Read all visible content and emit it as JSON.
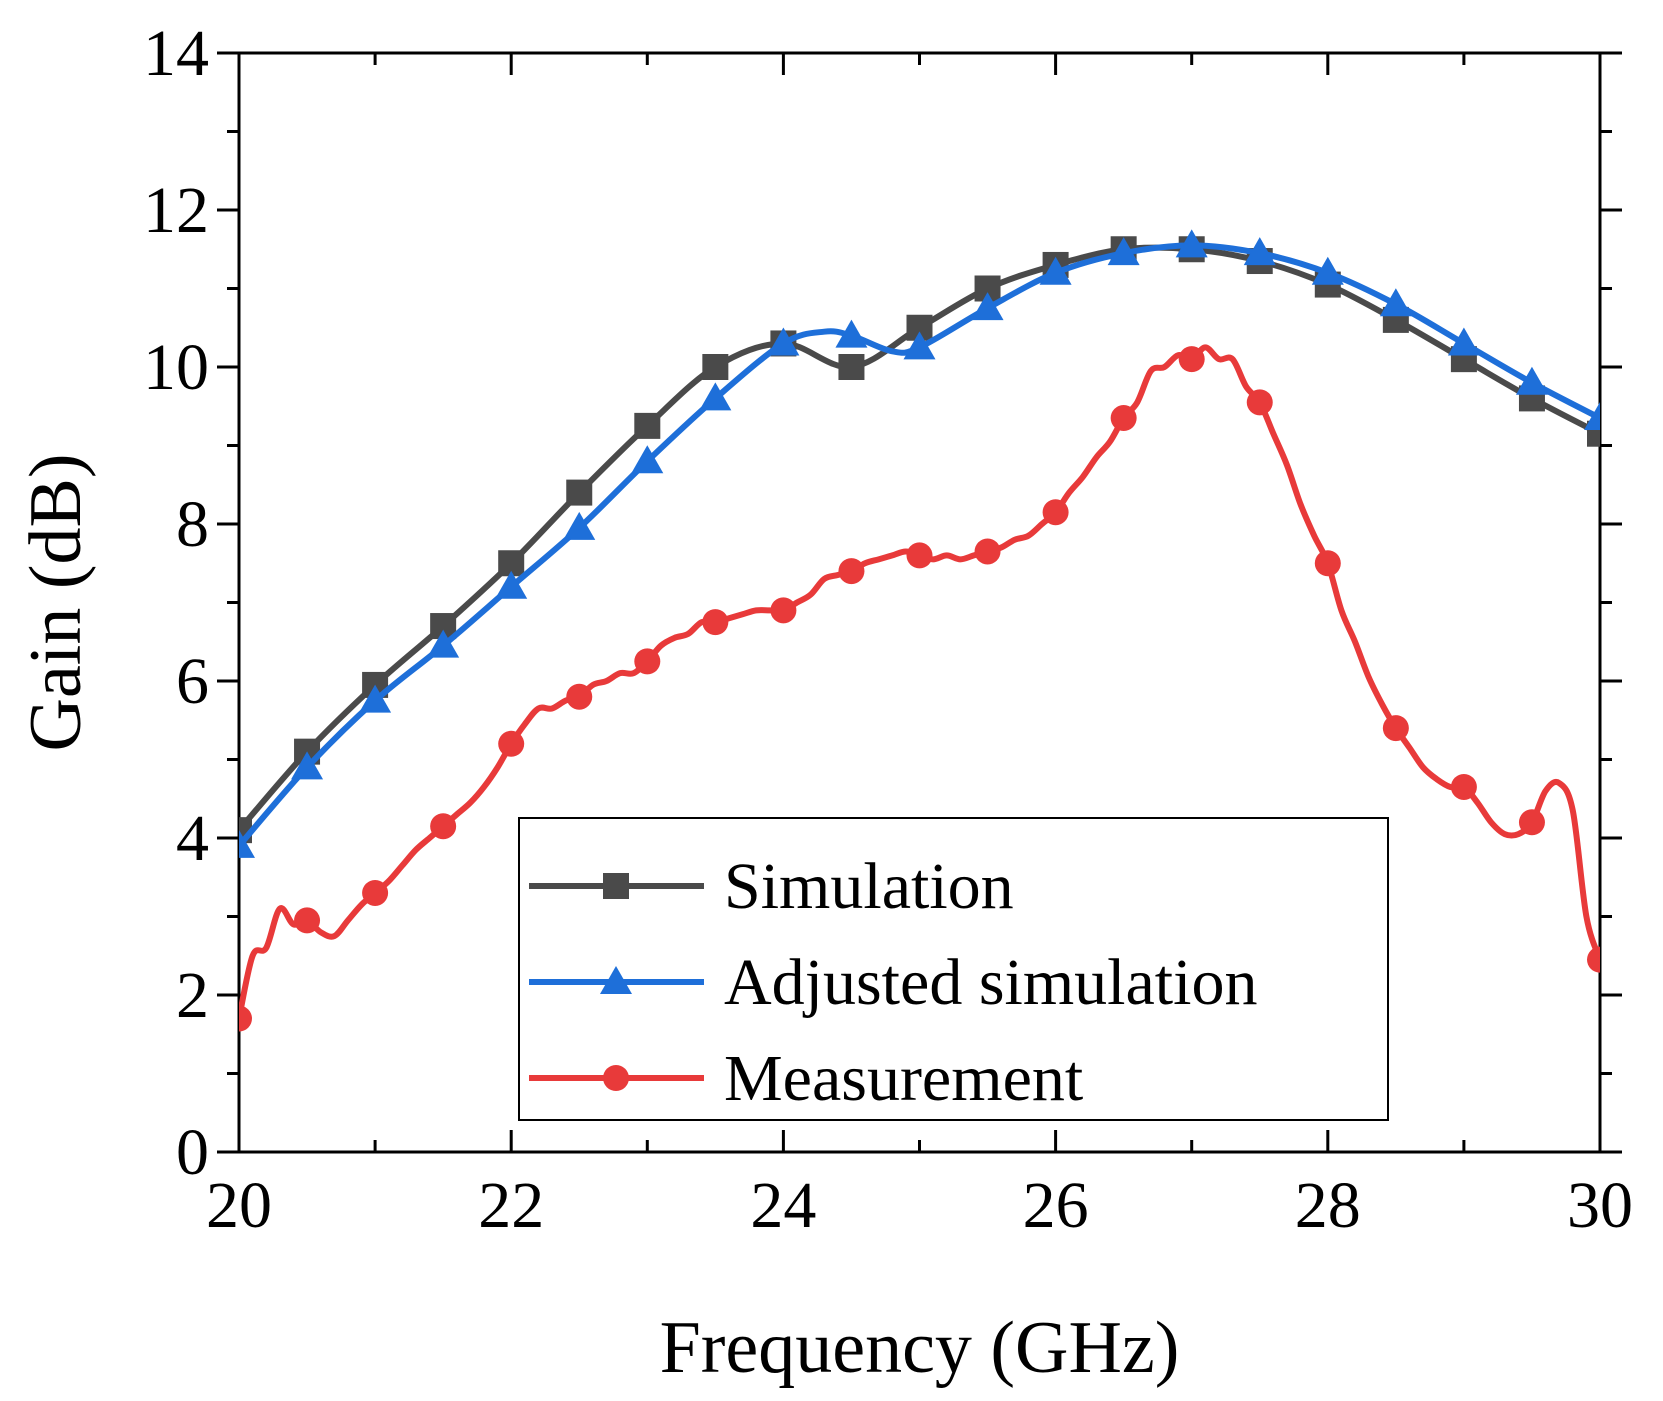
{
  "chart_data": {
    "type": "line",
    "title": "",
    "xlabel": "Frequency (GHz)",
    "ylabel": "Gain (dB)",
    "xlim": [
      20,
      30
    ],
    "ylim": [
      0,
      14
    ],
    "xticks": [
      "20",
      "22",
      "24",
      "26",
      "28",
      "30"
    ],
    "yticks": [
      "0",
      "2",
      "4",
      "6",
      "8",
      "10",
      "12",
      "14"
    ],
    "grid": false,
    "legend_position": "bottom-center",
    "series": [
      {
        "name": "Simulation",
        "color": "#4a4a4a",
        "marker": "square",
        "x": [
          20,
          20.5,
          21,
          21.5,
          22,
          22.5,
          23,
          23.5,
          24,
          24.5,
          25,
          25.5,
          26,
          26.5,
          27,
          27.5,
          28,
          28.5,
          29,
          29.5,
          30
        ],
        "y": [
          4.1,
          5.1,
          5.95,
          6.7,
          7.5,
          8.4,
          9.25,
          10.0,
          10.3,
          10.0,
          10.5,
          11.0,
          11.3,
          11.5,
          11.5,
          11.35,
          11.05,
          10.6,
          10.1,
          9.6,
          9.15
        ],
        "markers_x": [
          20,
          20.5,
          21,
          21.5,
          22,
          22.5,
          23,
          23.5,
          24,
          24.5,
          25,
          25.5,
          26,
          26.5,
          27,
          27.5,
          28,
          28.5,
          29,
          29.5,
          30
        ]
      },
      {
        "name": "Adjusted simulation",
        "color": "#1e6fd9",
        "marker": "triangle",
        "x": [
          20,
          20.5,
          21,
          21.5,
          22,
          22.5,
          23,
          23.5,
          24,
          24.3,
          24.5,
          24.8,
          25,
          25.5,
          26,
          26.5,
          27,
          27.5,
          28,
          28.5,
          29,
          29.5,
          30
        ],
        "y": [
          3.9,
          4.9,
          5.75,
          6.45,
          7.2,
          7.95,
          8.8,
          9.6,
          10.3,
          10.45,
          10.4,
          10.2,
          10.25,
          10.75,
          11.2,
          11.45,
          11.55,
          11.45,
          11.2,
          10.8,
          10.3,
          9.8,
          9.35
        ],
        "markers_x": [
          20,
          20.5,
          21,
          21.5,
          22,
          22.5,
          23,
          23.5,
          24,
          24.5,
          25,
          25.5,
          26,
          26.5,
          27,
          27.5,
          28,
          28.5,
          29,
          29.5,
          30
        ]
      },
      {
        "name": "Measurement",
        "color": "#e83a3a",
        "marker": "circle",
        "x": [
          20,
          20.1,
          20.2,
          20.3,
          20.4,
          20.5,
          20.6,
          20.7,
          20.8,
          20.9,
          21,
          21.1,
          21.2,
          21.3,
          21.4,
          21.5,
          21.6,
          21.7,
          21.8,
          21.9,
          22,
          22.1,
          22.2,
          22.3,
          22.4,
          22.5,
          22.6,
          22.7,
          22.8,
          22.9,
          23,
          23.1,
          23.2,
          23.3,
          23.4,
          23.5,
          23.6,
          23.7,
          23.8,
          23.9,
          24,
          24.1,
          24.2,
          24.3,
          24.4,
          24.5,
          24.6,
          24.7,
          24.8,
          24.9,
          25,
          25.1,
          25.2,
          25.3,
          25.4,
          25.5,
          25.6,
          25.7,
          25.8,
          25.9,
          26,
          26.1,
          26.2,
          26.3,
          26.4,
          26.5,
          26.6,
          26.7,
          26.8,
          26.9,
          27,
          27.1,
          27.2,
          27.3,
          27.4,
          27.5,
          27.6,
          27.7,
          27.8,
          27.9,
          28,
          28.1,
          28.2,
          28.3,
          28.4,
          28.5,
          28.6,
          28.7,
          28.8,
          28.9,
          29,
          29.1,
          29.2,
          29.3,
          29.4,
          29.5,
          29.6,
          29.7,
          29.8,
          29.9,
          30
        ],
        "y": [
          1.7,
          2.5,
          2.6,
          3.1,
          2.9,
          2.95,
          2.8,
          2.75,
          2.95,
          3.15,
          3.3,
          3.45,
          3.65,
          3.85,
          4.0,
          4.15,
          4.3,
          4.45,
          4.65,
          4.9,
          5.2,
          5.45,
          5.65,
          5.65,
          5.75,
          5.8,
          5.95,
          6.0,
          6.1,
          6.1,
          6.25,
          6.45,
          6.55,
          6.6,
          6.75,
          6.75,
          6.8,
          6.85,
          6.9,
          6.9,
          6.9,
          7.0,
          7.1,
          7.3,
          7.35,
          7.4,
          7.5,
          7.55,
          7.6,
          7.65,
          7.6,
          7.55,
          7.6,
          7.55,
          7.6,
          7.65,
          7.7,
          7.8,
          7.85,
          8.0,
          8.15,
          8.4,
          8.6,
          8.85,
          9.05,
          9.35,
          9.55,
          9.95,
          10.0,
          10.15,
          10.1,
          10.25,
          10.1,
          10.1,
          9.75,
          9.55,
          9.15,
          8.75,
          8.25,
          7.85,
          7.5,
          6.9,
          6.5,
          6.05,
          5.7,
          5.4,
          5.15,
          4.9,
          4.75,
          4.65,
          4.65,
          4.45,
          4.2,
          4.05,
          4.05,
          4.2,
          4.6,
          4.7,
          4.35,
          3.0,
          2.45
        ],
        "markers_x": [
          20,
          20.5,
          21,
          21.5,
          22,
          22.5,
          23,
          23.5,
          24,
          24.5,
          25,
          25.5,
          26,
          26.5,
          27,
          27.5,
          28,
          28.5,
          29,
          29.5,
          30
        ]
      }
    ]
  }
}
